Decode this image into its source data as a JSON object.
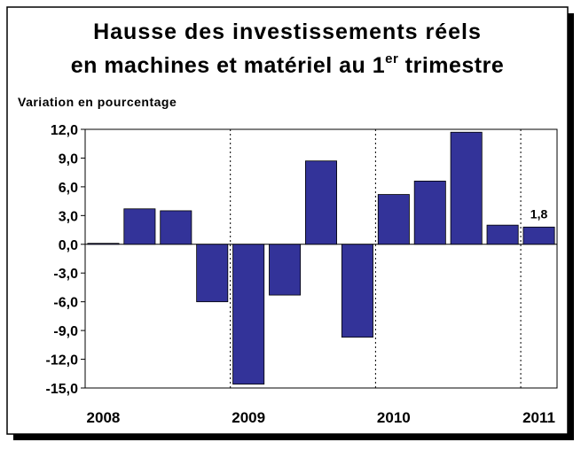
{
  "chart_data": {
    "type": "bar",
    "title": "Hausse des investissements réels",
    "title_line2": [
      "en machines et matériel au 1",
      "er",
      " trimestre"
    ],
    "y_label": "Variation en pourcentage",
    "categories": [
      "2008",
      null,
      null,
      null,
      "2009",
      null,
      null,
      null,
      "2010",
      null,
      null,
      null,
      "2011"
    ],
    "values": [
      0.1,
      3.7,
      3.5,
      -6.0,
      -14.6,
      -5.3,
      8.7,
      -9.7,
      5.2,
      6.6,
      11.7,
      2.0,
      1.8
    ],
    "value_labels": [
      null,
      null,
      null,
      null,
      null,
      null,
      null,
      null,
      null,
      null,
      null,
      null,
      "1,8"
    ],
    "color": "#333399",
    "ylim": [
      -15,
      12
    ],
    "yticks": [
      {
        "value": -15,
        "label": "-15,0"
      },
      {
        "value": -12,
        "label": "-12,0"
      },
      {
        "value": -9,
        "label": "-9,0"
      },
      {
        "value": -6,
        "label": "-6,0"
      },
      {
        "value": -3,
        "label": "-3,0"
      },
      {
        "value": 0,
        "label": "0,0"
      },
      {
        "value": 3,
        "label": "3,0"
      },
      {
        "value": 6,
        "label": "6,0"
      },
      {
        "value": 9,
        "label": "9,0"
      },
      {
        "value": 12,
        "label": "12,0"
      }
    ],
    "grid": false
  }
}
